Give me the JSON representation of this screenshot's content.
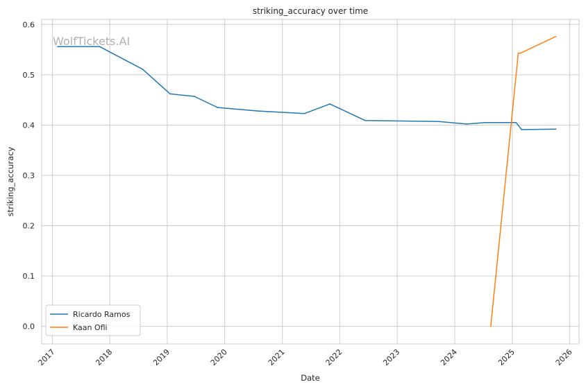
{
  "chart_data": {
    "type": "line",
    "title": "striking_accuracy over time",
    "xlabel": "Date",
    "ylabel": "striking_accuracy",
    "watermark": "WolfTickets.AI",
    "x_ticks": [
      "2017",
      "2018",
      "2019",
      "2020",
      "2021",
      "2022",
      "2023",
      "2024",
      "2025",
      "2026"
    ],
    "y_ticks": [
      "0.0",
      "0.1",
      "0.2",
      "0.3",
      "0.4",
      "0.5",
      "0.6"
    ],
    "xlim": [
      "2016-10-25",
      "2026-03-01"
    ],
    "ylim": [
      -0.035,
      0.61
    ],
    "grid": true,
    "legend_position": "lower-left",
    "series": [
      {
        "name": "Ricardo Ramos",
        "color": "#1f77b4",
        "points": [
          {
            "x": "2017-02-04",
            "y": 0.556
          },
          {
            "x": "2017-10-28",
            "y": 0.556
          },
          {
            "x": "2018-07-28",
            "y": 0.511
          },
          {
            "x": "2019-01-19",
            "y": 0.462
          },
          {
            "x": "2019-06-22",
            "y": 0.457
          },
          {
            "x": "2019-11-16",
            "y": 0.435
          },
          {
            "x": "2020-08-01",
            "y": 0.428
          },
          {
            "x": "2021-05-22",
            "y": 0.423
          },
          {
            "x": "2021-10-30",
            "y": 0.442
          },
          {
            "x": "2022-06-11",
            "y": 0.409
          },
          {
            "x": "2023-09-23",
            "y": 0.407
          },
          {
            "x": "2024-03-16",
            "y": 0.402
          },
          {
            "x": "2024-07-13",
            "y": 0.405
          },
          {
            "x": "2025-01-25",
            "y": 0.405
          },
          {
            "x": "2025-03-01",
            "y": 0.391
          },
          {
            "x": "2025-10-04",
            "y": 0.392
          }
        ]
      },
      {
        "name": "Kaan Ofli",
        "color": "#ff7f0e",
        "points": [
          {
            "x": "2024-08-17",
            "y": 0.0
          },
          {
            "x": "2025-02-08",
            "y": 0.543
          },
          {
            "x": "2025-02-22",
            "y": 0.543
          },
          {
            "x": "2025-10-04",
            "y": 0.576
          }
        ]
      }
    ]
  }
}
